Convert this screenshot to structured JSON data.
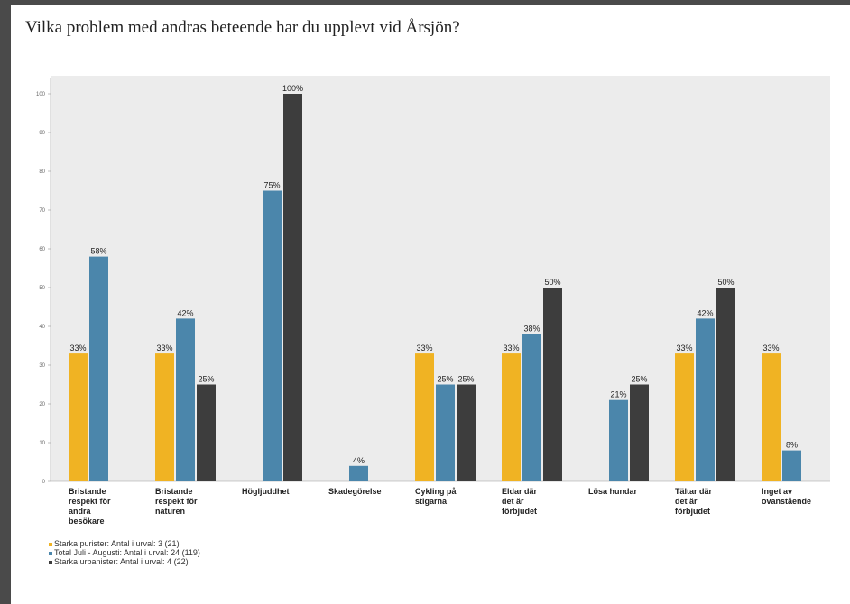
{
  "title": "Vilka problem med andras beteende har du upplevt vid Årsjön?",
  "chart_data": {
    "type": "bar",
    "ylim": [
      0,
      100
    ],
    "yticks": [
      0,
      10,
      20,
      30,
      40,
      50,
      60,
      70,
      80,
      90,
      100
    ],
    "grid": false,
    "legend_position": "bottom-left",
    "categories": [
      "Bristande respekt för andra besökare",
      "Bristande respekt för naturen",
      "Högljuddhet",
      "Skadegörelse",
      "Cykling på stigarna",
      "Eldar där det är förbjudet",
      "Lösa hundar",
      "Tältar där det är förbjudet",
      "Inget av ovanstående"
    ],
    "category_lines": [
      [
        "Bristande",
        "respekt för",
        "andra",
        "besökare"
      ],
      [
        "Bristande",
        "respekt för",
        "naturen"
      ],
      [
        "Högljuddhet"
      ],
      [
        "Skadegörelse"
      ],
      [
        "Cykling på",
        "stigarna"
      ],
      [
        "Eldar där",
        "det är",
        "förbjudet"
      ],
      [
        "Lösa hundar"
      ],
      [
        "Tältar där",
        "det är",
        "förbjudet"
      ],
      [
        "Inget av",
        "ovanstående"
      ]
    ],
    "series": [
      {
        "name": "Starka purister: Antal i urval: 3 (21)",
        "color": "#f0b323",
        "values": [
          33,
          33,
          null,
          null,
          33,
          33,
          null,
          33,
          33
        ],
        "labels": [
          "33%",
          "33%",
          "",
          "",
          "33%",
          "33%",
          "",
          "33%",
          "33%"
        ]
      },
      {
        "name": "Total Juli - Augusti: Antal i urval: 24 (119)",
        "color": "#4b86ab",
        "values": [
          58,
          42,
          75,
          4,
          25,
          38,
          21,
          42,
          8
        ],
        "labels": [
          "58%",
          "42%",
          "75%",
          "4%",
          "25%",
          "38%",
          "21%",
          "42%",
          "8%"
        ]
      },
      {
        "name": "Starka urbanister: Antal i urval: 4 (22)",
        "color": "#3d3d3d",
        "values": [
          null,
          25,
          100,
          null,
          25,
          50,
          25,
          50,
          null
        ],
        "labels": [
          "",
          "25%",
          "100%",
          "",
          "25%",
          "50%",
          "25%",
          "50%",
          ""
        ]
      }
    ]
  },
  "legend": [
    {
      "text": "Starka purister: Antal i urval: 3 (21)",
      "color": "#f0b323"
    },
    {
      "text": "Total Juli - Augusti: Antal i urval: 24 (119)",
      "color": "#4b86ab"
    },
    {
      "text": "Starka urbanister: Antal i urval: 4 (22)",
      "color": "#3d3d3d"
    }
  ]
}
